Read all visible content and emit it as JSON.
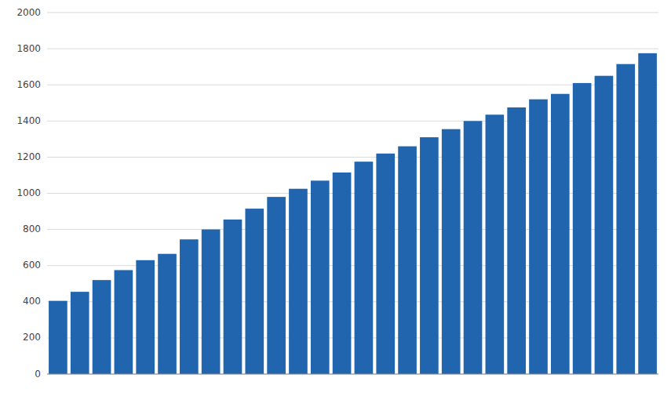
{
  "chart_data": {
    "type": "bar",
    "categories": [
      null,
      null,
      null,
      null,
      null,
      null,
      null,
      null,
      null,
      null,
      null,
      null,
      null,
      null,
      null,
      null,
      null,
      null,
      null,
      null,
      null,
      null,
      null,
      null,
      null,
      null,
      null,
      null
    ],
    "values": [
      405,
      455,
      520,
      575,
      630,
      665,
      745,
      800,
      855,
      915,
      980,
      1025,
      1070,
      1115,
      1175,
      1220,
      1260,
      1310,
      1355,
      1400,
      1435,
      1475,
      1520,
      1550,
      1610,
      1650,
      1715,
      1775
    ],
    "color": "#2165AE",
    "ylim": [
      0,
      2000
    ],
    "yticks": [
      0,
      200,
      400,
      600,
      800,
      1000,
      1200,
      1400,
      1600,
      1800,
      2000
    ],
    "grid": true,
    "tick_labels": "y"
  }
}
